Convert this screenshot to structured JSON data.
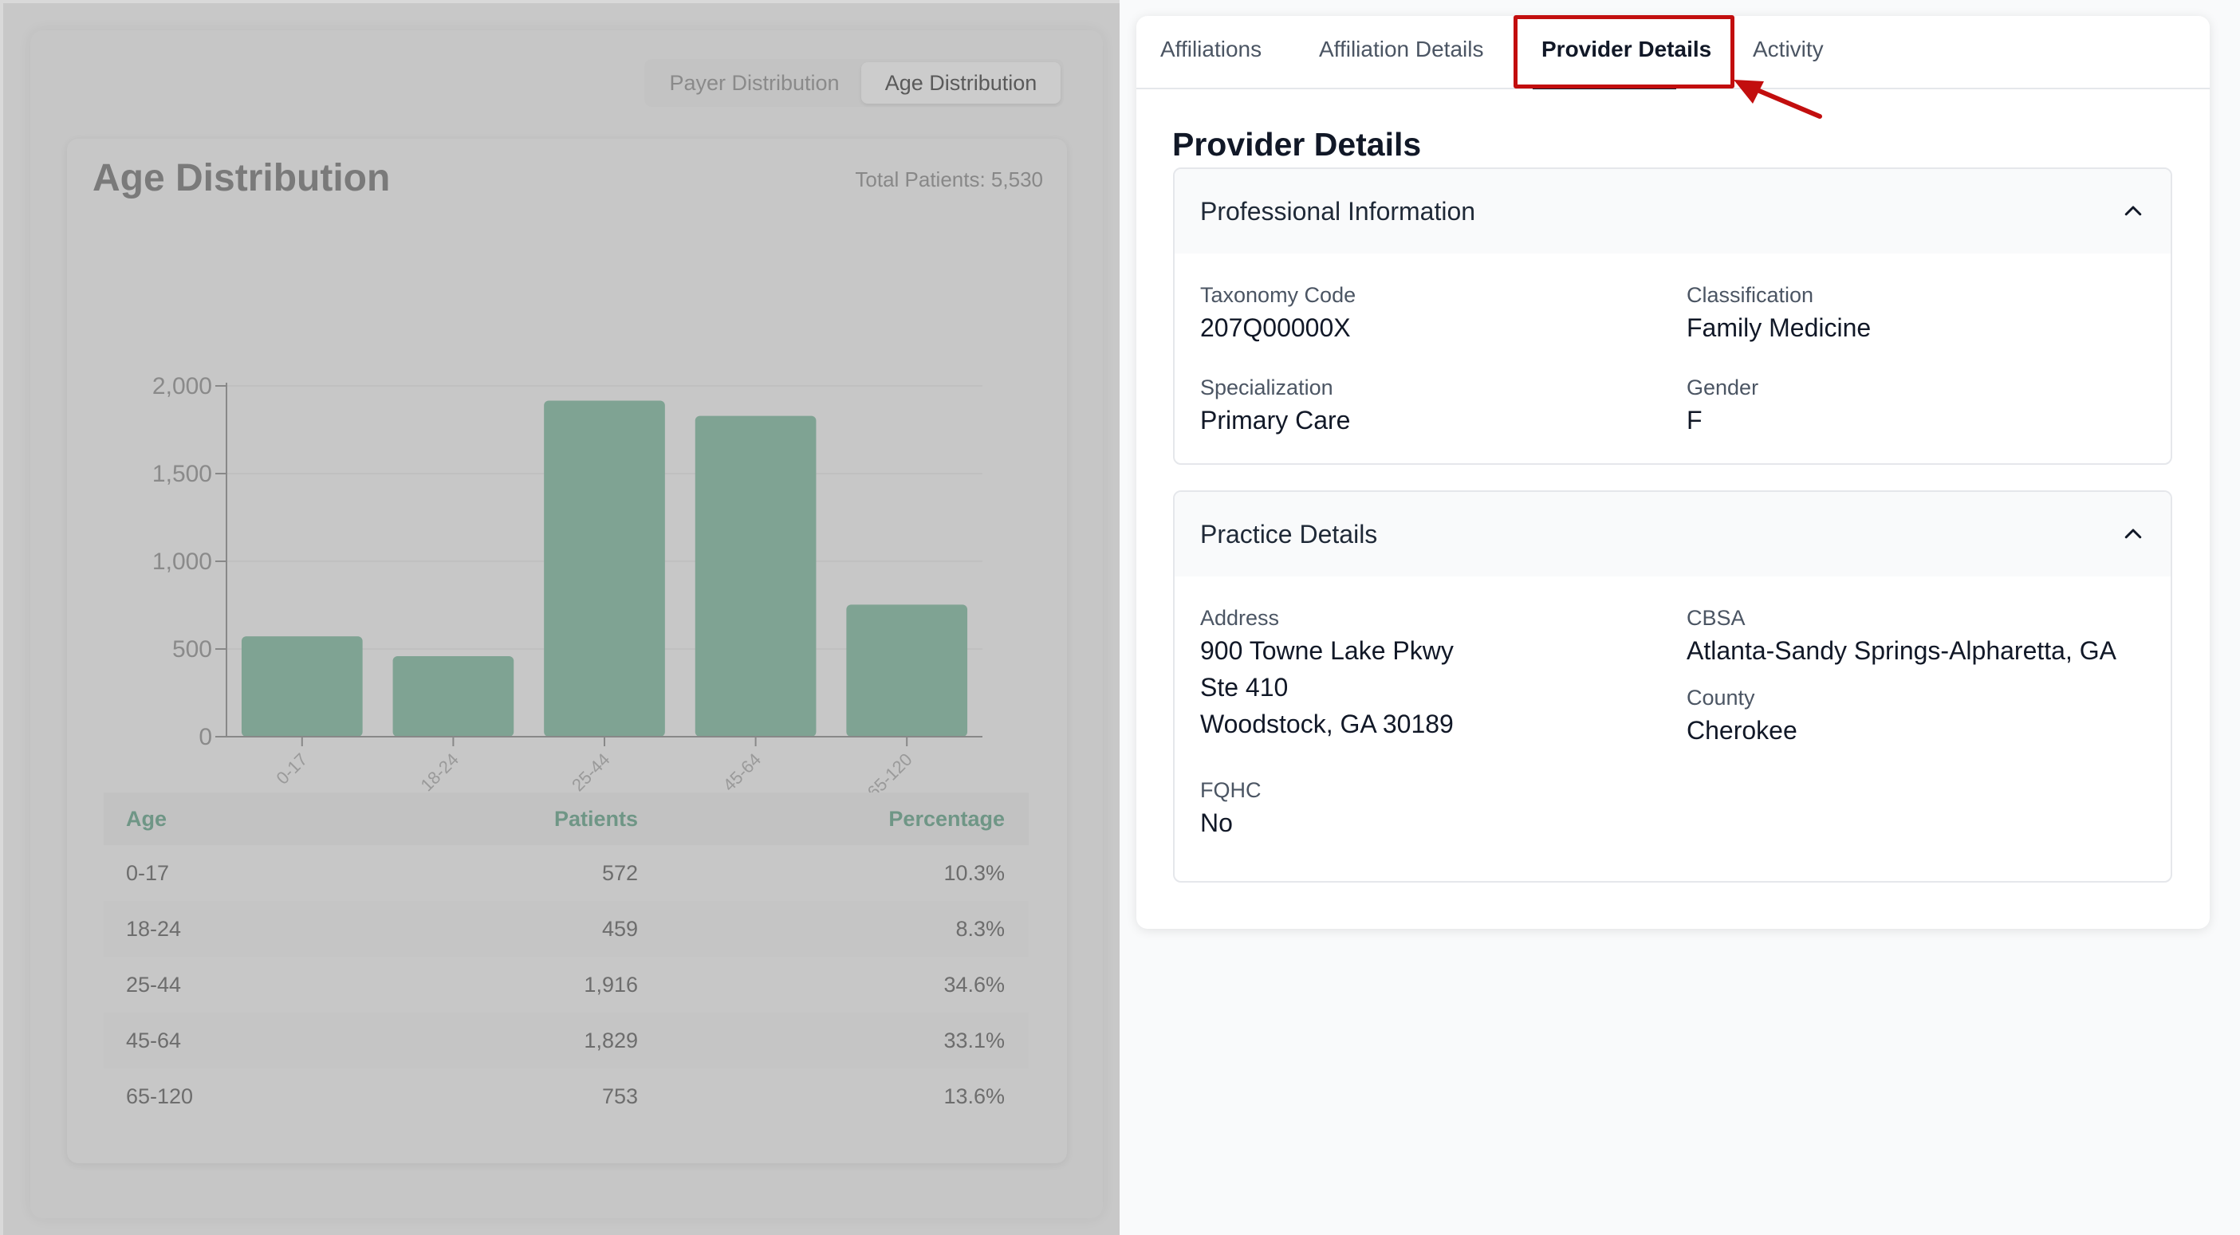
{
  "left": {
    "toggle": {
      "payer": "Payer Distribution",
      "age": "Age Distribution"
    },
    "title": "Age Distribution",
    "total": "Total Patients: 5,530",
    "table": {
      "headers": {
        "age": "Age",
        "patients": "Patients",
        "percentage": "Percentage"
      },
      "rows": [
        {
          "age": "0-17",
          "patients": "572",
          "percentage": "10.3%"
        },
        {
          "age": "18-24",
          "patients": "459",
          "percentage": "8.3%"
        },
        {
          "age": "25-44",
          "patients": "1,916",
          "percentage": "34.6%"
        },
        {
          "age": "45-64",
          "patients": "1,829",
          "percentage": "33.1%"
        },
        {
          "age": "65-120",
          "patients": "753",
          "percentage": "13.6%"
        }
      ]
    },
    "colors": {
      "bar": "#7fa393",
      "overlay": "#c8c8c8"
    }
  },
  "chart_data": {
    "type": "bar",
    "title": "Age Distribution",
    "categories": [
      "0-17",
      "18-24",
      "25-44",
      "45-64",
      "65-120"
    ],
    "values": [
      572,
      459,
      1916,
      1829,
      753
    ],
    "yticks": [
      "0",
      "500",
      "1,000",
      "1,500",
      "2,000"
    ],
    "ylim": [
      0,
      2000
    ],
    "xlabel": "",
    "ylabel": "",
    "grid": true
  },
  "tabs": {
    "affiliations": "Affiliations",
    "affiliation_details": "Affiliation Details",
    "provider_details": "Provider Details",
    "activity": "Activity"
  },
  "section_title": "Provider Details",
  "professional": {
    "title": "Professional Information",
    "taxonomy_label": "Taxonomy Code",
    "taxonomy_value": "207Q00000X",
    "classification_label": "Classification",
    "classification_value": "Family Medicine",
    "specialization_label": "Specialization",
    "specialization_value": "Primary Care",
    "gender_label": "Gender",
    "gender_value": "F"
  },
  "practice": {
    "title": "Practice Details",
    "address_label": "Address",
    "address_line1": "900 Towne Lake Pkwy",
    "address_line2": "Ste 410",
    "address_line3": "Woodstock, GA 30189",
    "cbsa_label": "CBSA",
    "cbsa_value": "Atlanta-Sandy Springs-Alpharetta, GA",
    "county_label": "County",
    "county_value": "Cherokee",
    "fqhc_label": "FQHC",
    "fqhc_value": "No"
  },
  "annotation_color": "#c20e0e"
}
